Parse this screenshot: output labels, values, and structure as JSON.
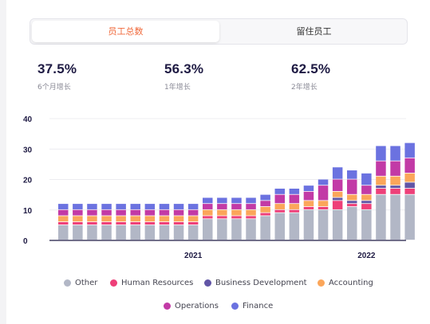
{
  "tabs": [
    {
      "label": "员工总数",
      "active": true
    },
    {
      "label": "留住员工",
      "active": false
    }
  ],
  "stats": [
    {
      "value": "37.5%",
      "label": "6个月增长"
    },
    {
      "value": "56.3%",
      "label": "1年增长"
    },
    {
      "value": "62.5%",
      "label": "2年增长"
    }
  ],
  "colors": {
    "accent": "#f06a3c",
    "Other": "#b2b7c6",
    "Human Resources": "#ee3f78",
    "Business Development": "#6155a6",
    "Accounting": "#fba65a",
    "Operations": "#c23aa6",
    "Finance": "#6b72e0"
  },
  "chart_data": {
    "type": "bar",
    "stacked": true,
    "y_ticks": [
      "0",
      "10",
      "20",
      "30",
      "40"
    ],
    "ylim": [
      0,
      40
    ],
    "x_tick_labels": [
      {
        "label": "2021",
        "index": 9
      },
      {
        "label": "2022",
        "index": 21
      }
    ],
    "grid": true,
    "legend": "bottom",
    "series": [
      {
        "name": "Other",
        "values": [
          5,
          5,
          5,
          5,
          5,
          5,
          5,
          5,
          5,
          5,
          7,
          7,
          7,
          7,
          8,
          9,
          9,
          10,
          10,
          10,
          11,
          10,
          15,
          15,
          15
        ]
      },
      {
        "name": "Human Resources",
        "values": [
          1,
          1,
          1,
          1,
          1,
          1,
          1,
          1,
          1,
          1,
          1,
          1,
          1,
          1,
          1,
          1,
          1,
          1,
          1,
          3,
          1,
          2,
          2,
          2,
          2
        ]
      },
      {
        "name": "Business Development",
        "values": [
          0,
          0,
          0,
          0,
          0,
          0,
          0,
          0,
          0,
          0,
          0,
          0,
          0,
          0,
          0,
          0,
          0,
          0,
          0,
          1,
          1,
          1,
          1,
          1,
          2
        ]
      },
      {
        "name": "Accounting",
        "values": [
          2,
          2,
          2,
          2,
          2,
          2,
          2,
          2,
          2,
          2,
          2,
          2,
          2,
          2,
          2,
          2,
          2,
          2,
          2,
          2,
          2,
          2,
          3,
          3,
          3
        ]
      },
      {
        "name": "Operations",
        "values": [
          2,
          2,
          2,
          2,
          2,
          2,
          2,
          2,
          2,
          2,
          2,
          2,
          2,
          2,
          2,
          3,
          3,
          3,
          5,
          4,
          5,
          3,
          5,
          5,
          5
        ]
      },
      {
        "name": "Finance",
        "values": [
          2,
          2,
          2,
          2,
          2,
          2,
          2,
          2,
          2,
          2,
          2,
          2,
          2,
          2,
          2,
          2,
          2,
          2,
          2,
          4,
          3,
          4,
          5,
          5,
          5
        ]
      }
    ]
  }
}
